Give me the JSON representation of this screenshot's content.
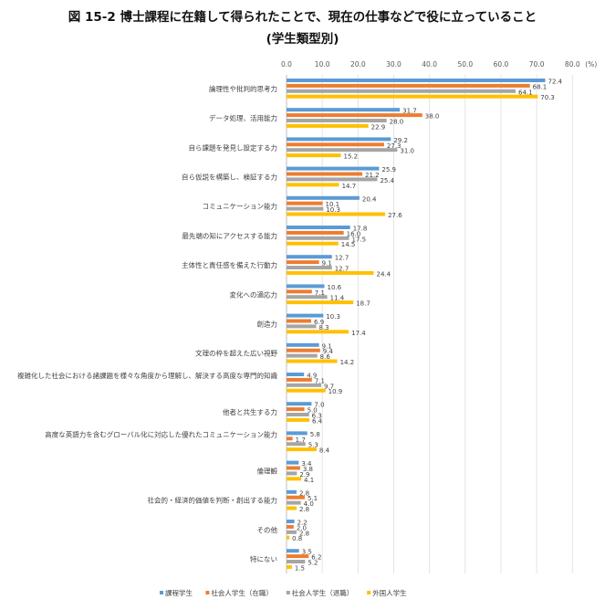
{
  "title": "図 15-2 博士課程に在籍して得られたことで、現在の仕事などで役に立っていること",
  "subtitle": "(学生類型別)",
  "chart_data": {
    "type": "bar",
    "orientation": "horizontal",
    "title": "図 15-2 博士課程に在籍して得られたことで、現在の仕事などで役に立っていること",
    "subtitle": "(学生類型別)",
    "xlim": [
      0,
      80
    ],
    "x_ticks": [
      "0.0",
      "10.0",
      "20.0",
      "30.0",
      "40.0",
      "50.0",
      "60.0",
      "70.0",
      "80.0"
    ],
    "x_unit": "(%)",
    "grid": true,
    "legend_position": "bottom",
    "categories": [
      "論理性や批判的思考力",
      "データ処理、活用能力",
      "自ら課題を発見し設定する力",
      "自ら仮説を構築し、検証する力",
      "コミュニケーション能力",
      "最先端の知にアクセスする能力",
      "主体性と責任感を備えた行動力",
      "変化への適応力",
      "創造力",
      "文理の枠を超えた広い視野",
      "複雑化した社会における諸課題を様々な角度から理解し、解決する高度な専門的知識",
      "他者と共生する力",
      "高度な英語力を含むグローバル化に対応した優れたコミュニケーション能力",
      "倫理観",
      "社会的・経済的価値を判断・創出する能力",
      "その他",
      "特にない"
    ],
    "series": [
      {
        "name": "課程学生",
        "color": "#5b9bd5",
        "values": [
          72.4,
          31.7,
          29.2,
          25.9,
          20.4,
          17.8,
          12.7,
          10.6,
          10.3,
          9.1,
          4.9,
          7.0,
          5.8,
          3.4,
          2.8,
          2.2,
          3.5
        ]
      },
      {
        "name": "社会人学生（在職）",
        "color": "#ed7d31",
        "values": [
          68.1,
          38.0,
          27.3,
          21.2,
          10.1,
          16.0,
          9.1,
          7.1,
          6.9,
          9.4,
          7.1,
          5.0,
          1.7,
          3.8,
          5.1,
          2.0,
          6.2
        ]
      },
      {
        "name": "社会人学生（退職）",
        "color": "#a5a5a5",
        "values": [
          64.1,
          28.0,
          31.0,
          25.4,
          10.3,
          17.5,
          12.7,
          11.4,
          8.3,
          8.6,
          9.7,
          6.3,
          5.3,
          2.9,
          4.0,
          2.8,
          5.2
        ]
      },
      {
        "name": "外国人学生",
        "color": "#ffc000",
        "values": [
          70.3,
          22.9,
          15.2,
          14.7,
          27.6,
          14.5,
          24.4,
          18.7,
          17.4,
          14.2,
          10.9,
          6.4,
          8.4,
          4.1,
          2.8,
          0.8,
          1.5
        ]
      }
    ]
  }
}
